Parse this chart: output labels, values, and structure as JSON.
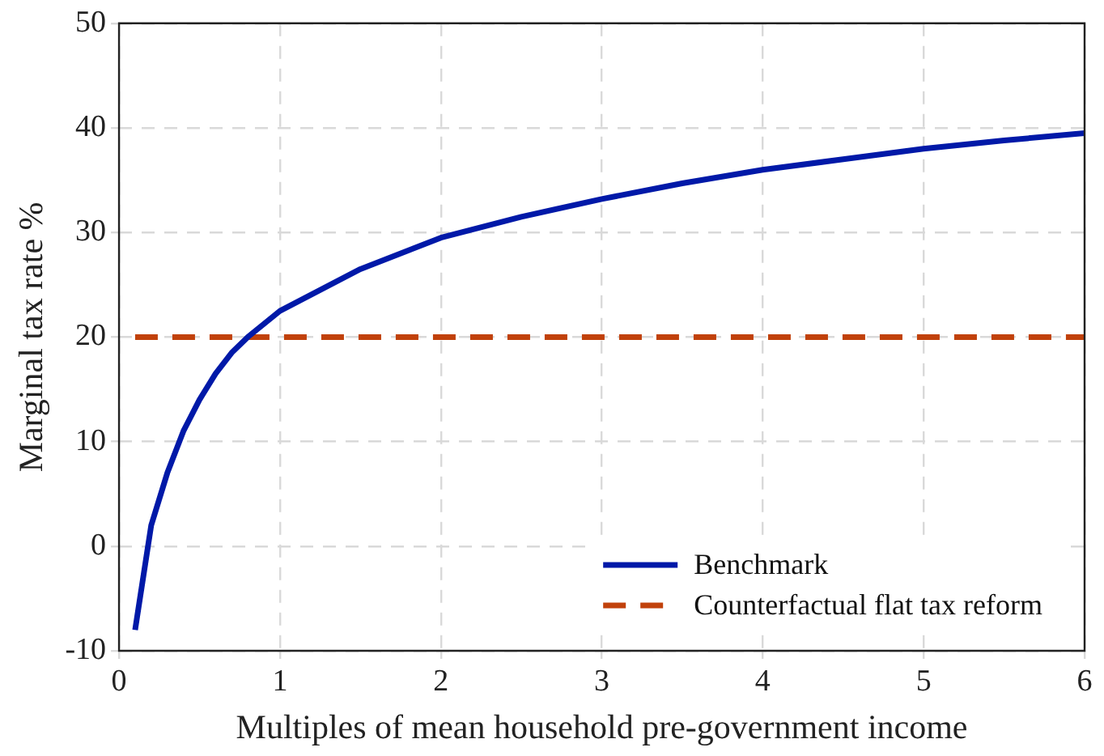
{
  "chart_data": {
    "type": "line",
    "xlabel": "Multiples of mean household pre-government income",
    "ylabel": "Marginal tax rate %",
    "x": [
      0.1,
      0.2,
      0.3,
      0.4,
      0.5,
      0.6,
      0.7,
      0.8,
      1,
      1.5,
      2,
      2.5,
      3,
      3.5,
      4,
      4.5,
      5,
      5.5,
      6
    ],
    "series": [
      {
        "name": "Benchmark",
        "color": "#0019a8",
        "line_style": "solid",
        "values": [
          -8,
          2,
          7,
          11,
          14,
          16.5,
          18.5,
          20,
          22.5,
          26.5,
          29.5,
          31.5,
          33.2,
          34.7,
          36,
          37,
          38,
          38.8,
          39.5
        ]
      },
      {
        "name": "Counterfactual flat tax reform",
        "color": "#c1410b",
        "line_style": "dashed",
        "values": [
          20,
          20,
          20,
          20,
          20,
          20,
          20,
          20,
          20,
          20,
          20,
          20,
          20,
          20,
          20,
          20,
          20,
          20,
          20
        ]
      }
    ],
    "xlim": [
      0,
      6
    ],
    "xticks": [
      0,
      1,
      2,
      3,
      4,
      5,
      6
    ],
    "ylim": [
      -10,
      50
    ],
    "yticks": [
      -10,
      0,
      10,
      20,
      30,
      40,
      50
    ],
    "grid": true,
    "legend": "bottom right",
    "marker": "none"
  }
}
